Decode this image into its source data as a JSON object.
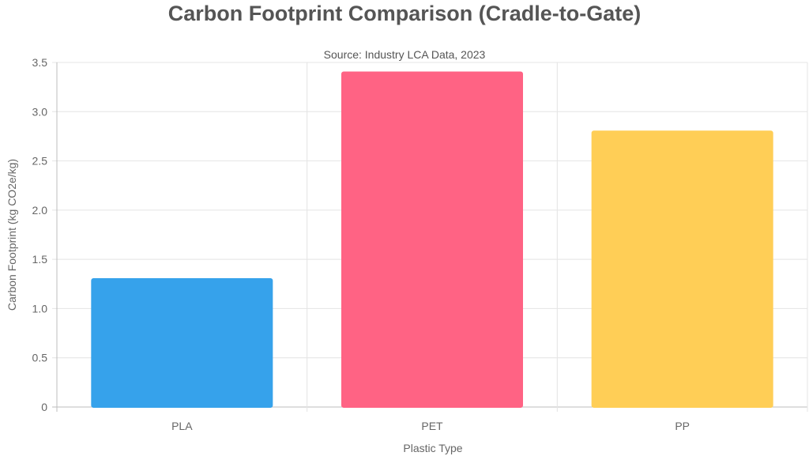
{
  "chart_data": {
    "type": "bar",
    "title": "Carbon Footprint Comparison (Cradle-to-Gate)",
    "subtitle": "Source: Industry LCA Data, 2023",
    "xlabel": "Plastic Type",
    "ylabel": "Carbon Footprint (kg CO2e/kg)",
    "categories": [
      "PLA",
      "PET",
      "PP"
    ],
    "values": [
      1.3,
      3.4,
      2.8
    ],
    "colors": [
      "#36A2EB",
      "#FF6384",
      "#FFCE56"
    ],
    "ylim": [
      0,
      3.5
    ],
    "yticks": [
      "0",
      "0.5",
      "1.0",
      "1.5",
      "2.0",
      "2.5",
      "3.0",
      "3.5"
    ],
    "grid": true,
    "legend": "none"
  }
}
